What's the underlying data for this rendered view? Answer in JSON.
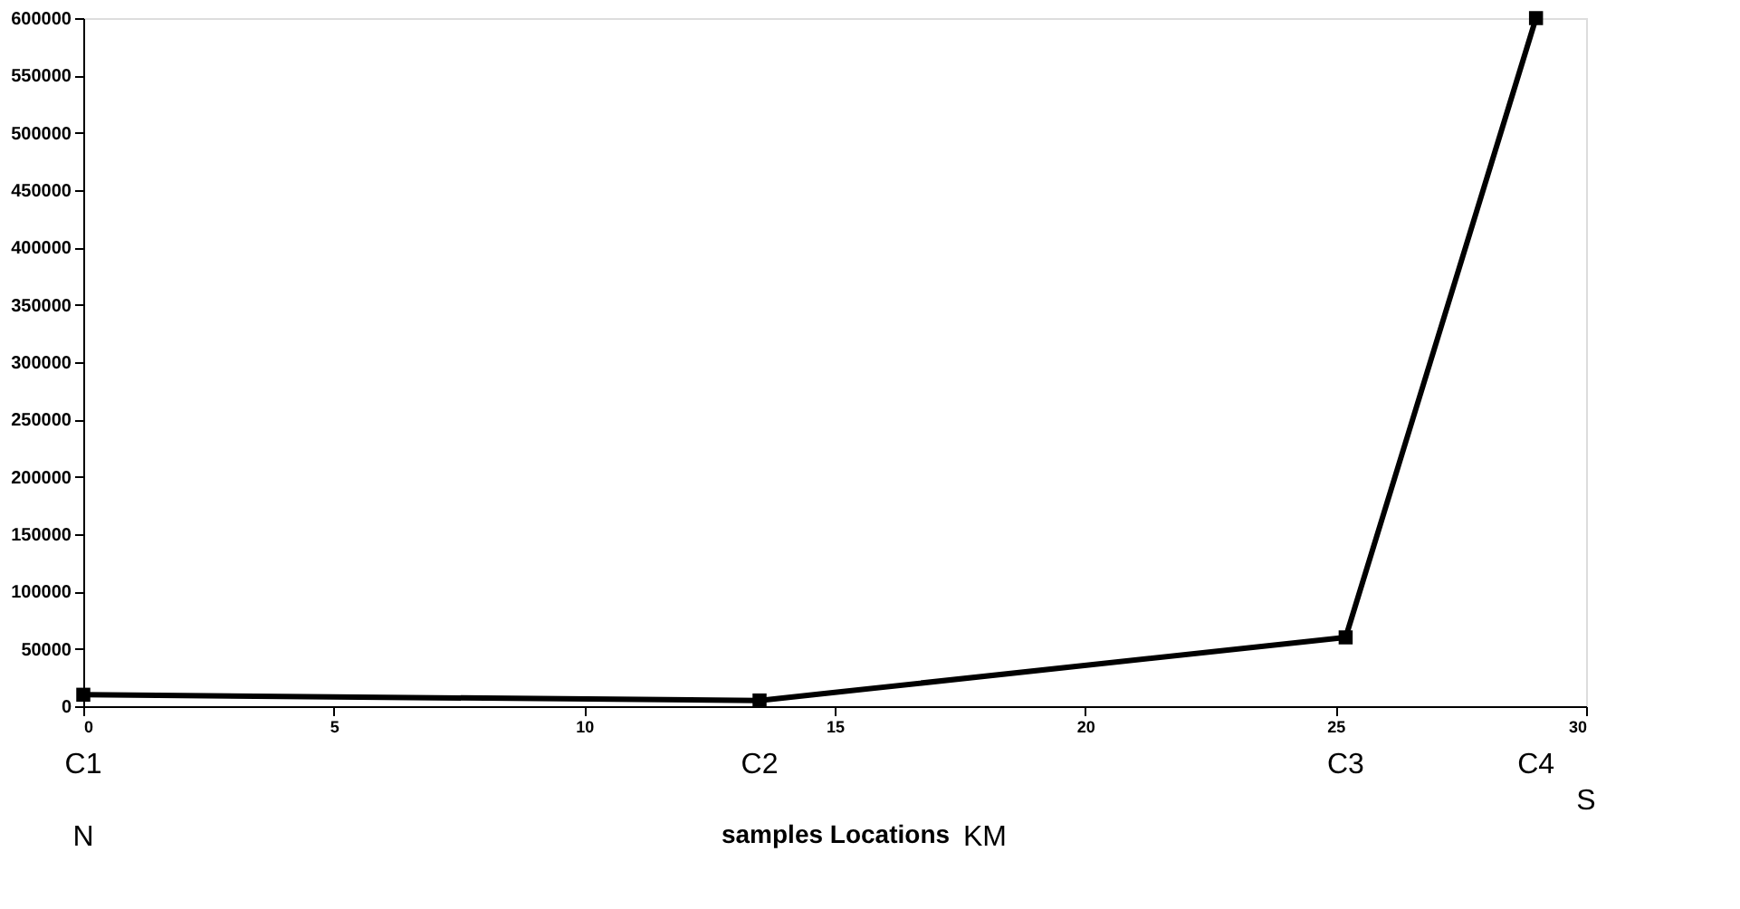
{
  "chart_data": {
    "type": "line",
    "xlabel": "samples Locations",
    "x": [
      0,
      13.5,
      25.2,
      29.0
    ],
    "series": [
      {
        "color": "#000000",
        "values": [
          10000,
          5000,
          60000,
          600000
        ]
      }
    ],
    "xlim": [
      0,
      30
    ],
    "xticks": [
      0,
      5,
      10,
      15,
      20,
      25,
      30
    ],
    "ylim": [
      0,
      600000
    ],
    "yticks": [
      0,
      50000,
      100000,
      150000,
      200000,
      250000,
      300000,
      350000,
      400000,
      450000,
      500000,
      550000,
      600000
    ],
    "grid": false,
    "marker": "square",
    "line_style": "solid",
    "annotations": [
      "C1",
      "C2",
      "C3",
      "C4",
      "N",
      "KM",
      "S"
    ]
  }
}
